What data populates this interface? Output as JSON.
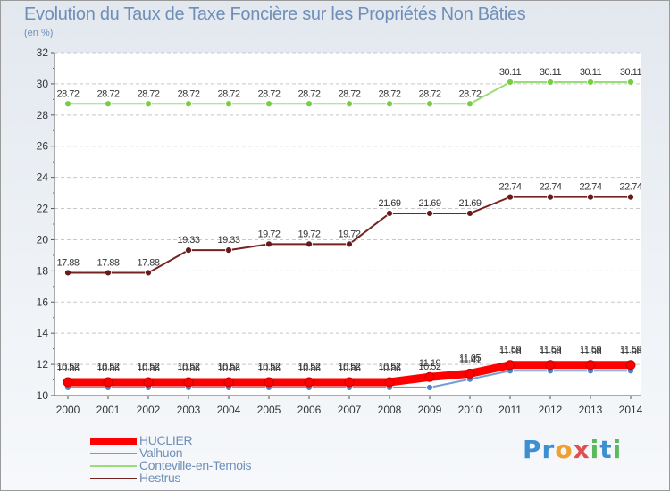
{
  "header": {
    "title": "Evolution du Taux de Taxe Foncière sur les Propriétés Non Bâties",
    "unit": "(en %)"
  },
  "logo": {
    "text": "Proxiti"
  },
  "chart_data": {
    "type": "line",
    "title": "Evolution du Taux de Taxe Foncière sur les Propriétés Non Bâties",
    "ylabel": "(en %)",
    "xlabel": "",
    "x": [
      "2000",
      "2001",
      "2002",
      "2003",
      "2004",
      "2005",
      "2006",
      "2007",
      "2008",
      "2009",
      "2010",
      "2011",
      "2012",
      "2013",
      "2014"
    ],
    "ylim": [
      10,
      32
    ],
    "yticks": [
      10,
      12,
      14,
      16,
      18,
      20,
      22,
      24,
      26,
      28,
      30,
      32
    ],
    "grid": "horizontal",
    "legend_position": "bottom-left",
    "series": [
      {
        "name": "HUCLIER",
        "color": "#ff0000",
        "marker_color": "#ff0000",
        "values": [
          10.86,
          10.86,
          10.86,
          10.86,
          10.86,
          10.86,
          10.86,
          10.86,
          10.86,
          11.19,
          11.41,
          11.96,
          11.96,
          11.96,
          11.96
        ],
        "labels": [
          "10.86",
          "10.86",
          "10.86",
          "10.86",
          "10.86",
          "10.86",
          "10.86",
          "10.86",
          "10.86",
          "11.19",
          "11.41",
          "11.96",
          "11.96",
          "11.96",
          "11.96"
        ]
      },
      {
        "name": "Valhuon",
        "color": "#6f9fd0",
        "marker_color": "#4a86c8",
        "values": [
          10.52,
          10.52,
          10.52,
          10.52,
          10.52,
          10.52,
          10.52,
          10.52,
          10.52,
          10.52,
          11.05,
          11.59,
          11.59,
          11.59,
          11.59
        ],
        "labels": [
          "10.52",
          "10.52",
          "10.52",
          "10.52",
          "10.52",
          "10.52",
          "10.52",
          "10.52",
          "10.52",
          "10.52",
          "11.05",
          "11.59",
          "11.59",
          "11.59",
          "11.59"
        ]
      },
      {
        "name": "Conteville-en-Ternois",
        "color": "#99dd77",
        "marker_color": "#77cc44",
        "values": [
          28.72,
          28.72,
          28.72,
          28.72,
          28.72,
          28.72,
          28.72,
          28.72,
          28.72,
          28.72,
          28.72,
          30.11,
          30.11,
          30.11,
          30.11
        ],
        "labels": [
          "28.72",
          "28.72",
          "28.72",
          "28.72",
          "28.72",
          "28.72",
          "28.72",
          "28.72",
          "28.72",
          "28.72",
          "28.72",
          "30.11",
          "30.11",
          "30.11",
          "30.11"
        ]
      },
      {
        "name": "Hestrus",
        "color": "#772222",
        "marker_color": "#661a1a",
        "values": [
          17.88,
          17.88,
          17.88,
          19.33,
          19.33,
          19.72,
          19.72,
          19.72,
          21.69,
          21.69,
          21.69,
          22.74,
          22.74,
          22.74,
          22.74
        ],
        "labels": [
          "17.88",
          "17.88",
          "17.88",
          "19.33",
          "19.33",
          "19.72",
          "19.72",
          "19.72",
          "21.69",
          "21.69",
          "21.69",
          "22.74",
          "22.74",
          "22.74",
          "22.74"
        ]
      }
    ]
  }
}
